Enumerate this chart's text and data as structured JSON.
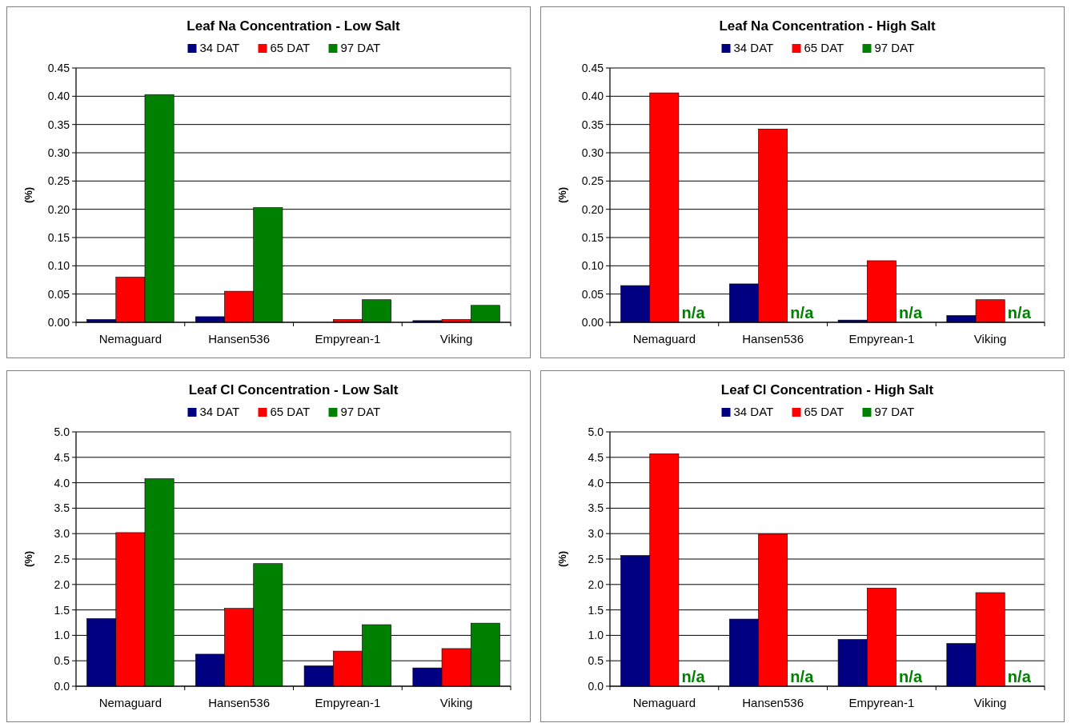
{
  "chart_data": [
    {
      "type": "bar",
      "title": "Leaf Na Concentration - Low Salt",
      "ylabel": "(%)",
      "categories": [
        "Nemaguard",
        "Hansen536",
        "Empyrean-1",
        "Viking"
      ],
      "series": [
        {
          "name": "34 DAT",
          "color": "#000080",
          "values": [
            0.005,
            0.01,
            0,
            0.003
          ]
        },
        {
          "name": "65 DAT",
          "color": "#ff0000",
          "values": [
            0.08,
            0.055,
            0.005,
            0.005
          ]
        },
        {
          "name": "97 DAT",
          "color": "#008000",
          "values": [
            0.403,
            0.203,
            0.04,
            0.03
          ]
        }
      ],
      "ylim": [
        0,
        0.45
      ],
      "yticks": [
        {
          "value": 0,
          "label": "0.00"
        },
        0.05,
        {
          "value": 0.1,
          "label": "0.10"
        },
        0.15,
        {
          "value": 0.2,
          "label": "0.20"
        },
        0.25,
        {
          "value": 0.3,
          "label": "0.30"
        },
        0.35,
        {
          "value": 0.4,
          "label": "0.40"
        },
        0.45
      ],
      "grid": "y",
      "legend": "top"
    },
    {
      "type": "bar",
      "title": "Leaf Na Concentration - High Salt",
      "ylabel": "(%)",
      "categories": [
        "Nemaguard",
        "Hansen536",
        "Empyrean-1",
        "Viking"
      ],
      "series": [
        {
          "name": "34 DAT",
          "color": "#000080",
          "values": [
            0.065,
            0.068,
            0.004,
            0.012
          ]
        },
        {
          "name": "65 DAT",
          "color": "#ff0000",
          "values": [
            0.406,
            0.342,
            0.109,
            0.04
          ]
        },
        {
          "name": "97 DAT",
          "color": "#008000",
          "values": [
            null,
            null,
            null,
            null
          ]
        }
      ],
      "annotations": [
        {
          "text": "n/a",
          "x": "Nemaguard",
          "y": 0
        },
        {
          "text": "n/a",
          "x": "Hansen536",
          "y": 0
        },
        {
          "text": "n/a",
          "x": "Empyrean-1",
          "y": 0
        },
        {
          "text": "n/a",
          "x": "Viking",
          "y": 0
        }
      ],
      "ylim": [
        0,
        0.45
      ],
      "yticks": [
        {
          "value": 0,
          "label": "0.00"
        },
        0.05,
        {
          "value": 0.1,
          "label": "0.10"
        },
        0.15,
        {
          "value": 0.2,
          "label": "0.20"
        },
        0.25,
        {
          "value": 0.3,
          "label": "0.30"
        },
        0.35,
        {
          "value": 0.4,
          "label": "0.40"
        },
        0.45
      ],
      "grid": "y",
      "legend": "top"
    },
    {
      "type": "bar",
      "title": "Leaf Cl Concentration - Low Salt",
      "ylabel": "(%)",
      "categories": [
        "Nemaguard",
        "Hansen536",
        "Empyrean-1",
        "Viking"
      ],
      "series": [
        {
          "name": "34 DAT",
          "color": "#000080",
          "values": [
            1.33,
            0.63,
            0.4,
            0.36
          ]
        },
        {
          "name": "65 DAT",
          "color": "#ff0000",
          "values": [
            3.02,
            1.53,
            0.69,
            0.74
          ]
        },
        {
          "name": "97 DAT",
          "color": "#008000",
          "values": [
            4.08,
            2.41,
            1.21,
            1.24
          ]
        }
      ],
      "ylim": [
        0,
        5
      ],
      "yticks": [
        {
          "value": 0,
          "label": "0.0"
        },
        0.5,
        {
          "value": 1,
          "label": "1.0"
        },
        1.5,
        {
          "value": 2,
          "label": "2.0"
        },
        2.5,
        {
          "value": 3,
          "label": "3.0"
        },
        3.5,
        {
          "value": 4,
          "label": "4.0"
        },
        4.5,
        {
          "value": 5,
          "label": "5.0"
        }
      ],
      "grid": "y",
      "legend": "top"
    },
    {
      "type": "bar",
      "title": "Leaf Cl Concentration - High Salt",
      "ylabel": "(%)",
      "categories": [
        "Nemaguard",
        "Hansen536",
        "Empyrean-1",
        "Viking"
      ],
      "series": [
        {
          "name": "34 DAT",
          "color": "#000080",
          "values": [
            2.57,
            1.32,
            0.92,
            0.84
          ]
        },
        {
          "name": "65 DAT",
          "color": "#ff0000",
          "values": [
            4.57,
            2.99,
            1.93,
            1.84
          ]
        },
        {
          "name": "97 DAT",
          "color": "#008000",
          "values": [
            null,
            null,
            null,
            null
          ]
        }
      ],
      "annotations": [
        {
          "text": "n/a",
          "x": "Nemaguard",
          "y": 0
        },
        {
          "text": "n/a",
          "x": "Hansen536",
          "y": 0
        },
        {
          "text": "n/a",
          "x": "Empyrean-1",
          "y": 0
        },
        {
          "text": "n/a",
          "x": "Viking",
          "y": 0
        }
      ],
      "ylim": [
        0,
        5
      ],
      "yticks": [
        {
          "value": 0,
          "label": "0.0"
        },
        0.5,
        {
          "value": 1,
          "label": "1.0"
        },
        1.5,
        {
          "value": 2,
          "label": "2.0"
        },
        2.5,
        {
          "value": 3,
          "label": "3.0"
        },
        3.5,
        {
          "value": 4,
          "label": "4.0"
        },
        4.5,
        {
          "value": 5,
          "label": "5.0"
        }
      ],
      "grid": "y",
      "legend": "top"
    }
  ]
}
